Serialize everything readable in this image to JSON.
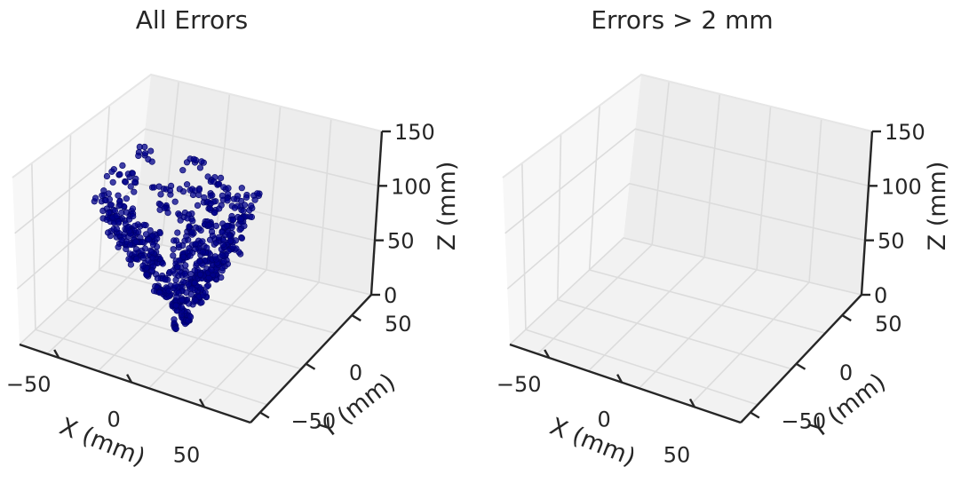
{
  "chart_data": [
    {
      "type": "scatter",
      "title": "All Errors",
      "xlabel": "X (mm)",
      "ylabel": "Y (mm)",
      "zlabel": "Z (mm)",
      "xticks": [
        "−50",
        "0",
        "50"
      ],
      "yticks": [
        "−50",
        "0",
        "50"
      ],
      "zticks": [
        "0",
        "50",
        "100",
        "150"
      ],
      "xlim": [
        -80,
        80
      ],
      "ylim": [
        -80,
        80
      ],
      "zlim": [
        0,
        150
      ],
      "grid": true,
      "point_color": "#00008b",
      "series": [
        {
          "points_description": "cone-shaped cloud of ~1000 points: apex near x=0, y=-15, z=10, widening upward to about 40 mm radius near z=110; sampled below",
          "points": [
            [
              -3,
              -18,
              10
            ],
            [
              0,
              -12,
              14
            ],
            [
              4,
              -16,
              18
            ],
            [
              -6,
              -10,
              22
            ],
            [
              6,
              -20,
              25
            ],
            [
              -2,
              -14,
              28
            ],
            [
              8,
              -8,
              30
            ],
            [
              -10,
              -16,
              32
            ],
            [
              2,
              -24,
              34
            ],
            [
              -5,
              -6,
              36
            ],
            [
              12,
              -12,
              38
            ],
            [
              -12,
              -20,
              40
            ],
            [
              0,
              -2,
              42
            ],
            [
              10,
              -26,
              44
            ],
            [
              -15,
              -10,
              45
            ],
            [
              6,
              -4,
              46
            ],
            [
              -8,
              -28,
              48
            ],
            [
              16,
              -18,
              50
            ],
            [
              -18,
              -4,
              52
            ],
            [
              3,
              -30,
              54
            ],
            [
              18,
              -6,
              55
            ],
            [
              -20,
              -22,
              56
            ],
            [
              -4,
              4,
              58
            ],
            [
              14,
              -30,
              60
            ],
            [
              -22,
              -12,
              62
            ],
            [
              20,
              -14,
              63
            ],
            [
              8,
              6,
              64
            ],
            [
              -14,
              -32,
              65
            ],
            [
              24,
              -24,
              66
            ],
            [
              -26,
              0,
              67
            ],
            [
              2,
              10,
              68
            ],
            [
              -24,
              -28,
              70
            ],
            [
              26,
              -8,
              71
            ],
            [
              10,
              -36,
              72
            ],
            [
              -8,
              12,
              73
            ],
            [
              28,
              -20,
              74
            ],
            [
              -30,
              -16,
              75
            ],
            [
              16,
              8,
              76
            ],
            [
              -18,
              -38,
              77
            ],
            [
              22,
              -34,
              78
            ],
            [
              -32,
              -4,
              79
            ],
            [
              4,
              16,
              80
            ],
            [
              30,
              -2,
              81
            ],
            [
              -12,
              16,
              82
            ],
            [
              -28,
              -32,
              83
            ],
            [
              14,
              -40,
              84
            ],
            [
              32,
              -26,
              85
            ],
            [
              -34,
              -20,
              86
            ],
            [
              20,
              14,
              87
            ],
            [
              -6,
              -42,
              88
            ],
            [
              34,
              -12,
              89
            ],
            [
              -22,
              12,
              90
            ],
            [
              -36,
              -8,
              91
            ],
            [
              26,
              -36,
              92
            ],
            [
              8,
              20,
              93
            ],
            [
              -30,
              -36,
              94
            ],
            [
              36,
              -30,
              95
            ],
            [
              -16,
              -44,
              96
            ],
            [
              0,
              20,
              97
            ],
            [
              30,
              10,
              98
            ],
            [
              -38,
              -26,
              99
            ],
            [
              18,
              -44,
              100
            ],
            [
              -26,
              18,
              101
            ],
            [
              38,
              -18,
              102
            ],
            [
              -10,
              22,
              103
            ],
            [
              28,
              -40,
              104
            ],
            [
              -40,
              -14,
              105
            ],
            [
              12,
              22,
              106
            ],
            [
              -34,
              -38,
              107
            ],
            [
              36,
              4,
              108
            ],
            [
              -2,
              -46,
              109
            ],
            [
              24,
              18,
              110
            ],
            [
              -38,
              4,
              111
            ],
            [
              40,
              -24,
              112
            ],
            [
              -20,
              -46,
              113
            ],
            [
              16,
              -48,
              114
            ],
            [
              -42,
              -30,
              115
            ],
            [
              4,
              24,
              116
            ],
            [
              32,
              16,
              118
            ],
            [
              -28,
              -44,
              120
            ],
            [
              -44,
              -6,
              122
            ],
            [
              42,
              -8,
              124
            ],
            [
              -8,
              26,
              126
            ],
            [
              30,
              -44,
              128
            ],
            [
              -36,
              14,
              130
            ]
          ]
        }
      ]
    },
    {
      "type": "scatter",
      "title": "Errors > 2 mm",
      "xlabel": "X (mm)",
      "ylabel": "Y (mm)",
      "zlabel": "Z (mm)",
      "xticks": [
        "−50",
        "0",
        "50"
      ],
      "yticks": [
        "−50",
        "0",
        "50"
      ],
      "zticks": [
        "0",
        "50",
        "100",
        "150"
      ],
      "xlim": [
        -80,
        80
      ],
      "ylim": [
        -80,
        80
      ],
      "zlim": [
        0,
        150
      ],
      "grid": true,
      "series": []
    }
  ]
}
